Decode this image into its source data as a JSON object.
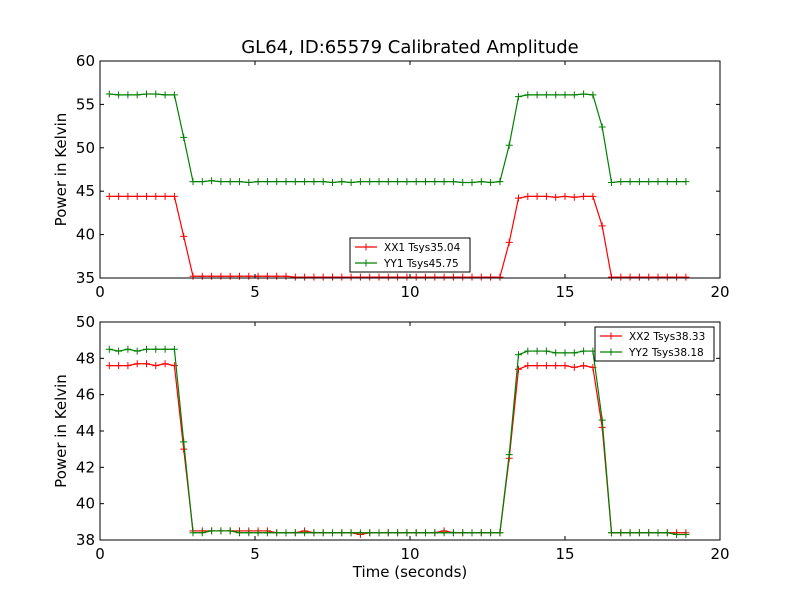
{
  "figure": {
    "title": "GL64, ID:65579 Calibrated Amplitude"
  },
  "chart_data": [
    {
      "type": "line",
      "title": "GL64, ID:65579 Calibrated Amplitude",
      "xlabel": "",
      "ylabel": "Power in Kelvin",
      "xlim": [
        0,
        20
      ],
      "ylim": [
        35,
        60
      ],
      "xticks": [
        0,
        5,
        10,
        15,
        20
      ],
      "yticks": [
        35,
        40,
        45,
        50,
        55,
        60
      ],
      "grid": false,
      "legend": "lower-center",
      "series": [
        {
          "name": "XX1 Tsys35.04",
          "color": "#ff0000",
          "marker": "+",
          "x": [
            0.3,
            0.6,
            0.9,
            1.2,
            1.5,
            1.8,
            2.1,
            2.4,
            2.7,
            3.0,
            3.3,
            3.6,
            3.9,
            4.2,
            4.5,
            4.8,
            5.1,
            5.4,
            5.7,
            6.0,
            6.3,
            6.6,
            6.9,
            7.2,
            7.5,
            7.8,
            8.1,
            8.4,
            8.7,
            9.0,
            9.3,
            9.6,
            9.9,
            10.2,
            10.5,
            10.8,
            11.1,
            11.4,
            11.7,
            12.0,
            12.3,
            12.6,
            12.9,
            13.2,
            13.5,
            13.8,
            14.1,
            14.4,
            14.7,
            15.0,
            15.3,
            15.6,
            15.9,
            16.2,
            16.5,
            16.8,
            17.1,
            17.4,
            17.7,
            18.0,
            18.3,
            18.6,
            18.9
          ],
          "y": [
            44.4,
            44.4,
            44.4,
            44.4,
            44.4,
            44.4,
            44.4,
            44.4,
            39.8,
            35.2,
            35.2,
            35.2,
            35.2,
            35.2,
            35.2,
            35.2,
            35.2,
            35.2,
            35.2,
            35.2,
            35.1,
            35.1,
            35.1,
            35.1,
            35.1,
            35.1,
            35.1,
            35.1,
            35.1,
            35.1,
            35.1,
            35.1,
            35.1,
            35.1,
            35.1,
            35.1,
            35.1,
            35.1,
            35.1,
            35.1,
            35.1,
            35.1,
            35.1,
            39.1,
            44.2,
            44.4,
            44.4,
            44.4,
            44.3,
            44.4,
            44.3,
            44.4,
            44.4,
            41.0,
            35.1,
            35.1,
            35.1,
            35.1,
            35.1,
            35.1,
            35.1,
            35.1,
            35.1
          ]
        },
        {
          "name": "YY1 Tsys45.75",
          "color": "#008000",
          "marker": "+",
          "x": [
            0.3,
            0.6,
            0.9,
            1.2,
            1.5,
            1.8,
            2.1,
            2.4,
            2.7,
            3.0,
            3.3,
            3.6,
            3.9,
            4.2,
            4.5,
            4.8,
            5.1,
            5.4,
            5.7,
            6.0,
            6.3,
            6.6,
            6.9,
            7.2,
            7.5,
            7.8,
            8.1,
            8.4,
            8.7,
            9.0,
            9.3,
            9.6,
            9.9,
            10.2,
            10.5,
            10.8,
            11.1,
            11.4,
            11.7,
            12.0,
            12.3,
            12.6,
            12.9,
            13.2,
            13.5,
            13.8,
            14.1,
            14.4,
            14.7,
            15.0,
            15.3,
            15.6,
            15.9,
            16.2,
            16.5,
            16.8,
            17.1,
            17.4,
            17.7,
            18.0,
            18.3,
            18.6,
            18.9
          ],
          "y": [
            56.2,
            56.1,
            56.1,
            56.1,
            56.2,
            56.2,
            56.1,
            56.1,
            51.2,
            46.1,
            46.1,
            46.2,
            46.1,
            46.1,
            46.1,
            46.0,
            46.1,
            46.1,
            46.1,
            46.1,
            46.1,
            46.1,
            46.1,
            46.1,
            46.0,
            46.1,
            46.0,
            46.1,
            46.1,
            46.1,
            46.1,
            46.1,
            46.1,
            46.1,
            46.1,
            46.1,
            46.1,
            46.1,
            46.0,
            46.0,
            46.1,
            46.0,
            46.1,
            50.3,
            55.9,
            56.1,
            56.1,
            56.1,
            56.1,
            56.1,
            56.1,
            56.2,
            56.1,
            52.4,
            46.0,
            46.1,
            46.1,
            46.1,
            46.1,
            46.1,
            46.1,
            46.1,
            46.1
          ]
        }
      ]
    },
    {
      "type": "line",
      "title": "",
      "xlabel": "Time (seconds)",
      "ylabel": "Power in Kelvin",
      "xlim": [
        0,
        20
      ],
      "ylim": [
        38,
        50
      ],
      "xticks": [
        0,
        5,
        10,
        15,
        20
      ],
      "yticks": [
        38,
        40,
        42,
        44,
        46,
        48,
        50
      ],
      "grid": false,
      "legend": "top-right",
      "series": [
        {
          "name": "XX2 Tsys38.33",
          "color": "#ff0000",
          "marker": "+",
          "x": [
            0.3,
            0.6,
            0.9,
            1.2,
            1.5,
            1.8,
            2.1,
            2.4,
            2.7,
            3.0,
            3.3,
            3.6,
            3.9,
            4.2,
            4.5,
            4.8,
            5.1,
            5.4,
            5.7,
            6.0,
            6.3,
            6.6,
            6.9,
            7.2,
            7.5,
            7.8,
            8.1,
            8.4,
            8.7,
            9.0,
            9.3,
            9.6,
            9.9,
            10.2,
            10.5,
            10.8,
            11.1,
            11.4,
            11.7,
            12.0,
            12.3,
            12.6,
            12.9,
            13.2,
            13.5,
            13.8,
            14.1,
            14.4,
            14.7,
            15.0,
            15.3,
            15.6,
            15.9,
            16.2,
            16.5,
            16.8,
            17.1,
            17.4,
            17.7,
            18.0,
            18.3,
            18.6,
            18.9
          ],
          "y": [
            47.6,
            47.6,
            47.6,
            47.7,
            47.7,
            47.6,
            47.7,
            47.6,
            43.0,
            38.5,
            38.5,
            38.5,
            38.5,
            38.5,
            38.5,
            38.5,
            38.5,
            38.5,
            38.4,
            38.4,
            38.4,
            38.5,
            38.4,
            38.4,
            38.4,
            38.4,
            38.4,
            38.3,
            38.4,
            38.4,
            38.4,
            38.4,
            38.4,
            38.4,
            38.4,
            38.4,
            38.5,
            38.4,
            38.4,
            38.4,
            38.4,
            38.4,
            38.4,
            42.5,
            47.4,
            47.6,
            47.6,
            47.6,
            47.6,
            47.6,
            47.5,
            47.6,
            47.5,
            44.2,
            38.4,
            38.4,
            38.4,
            38.4,
            38.4,
            38.4,
            38.4,
            38.4,
            38.4
          ]
        },
        {
          "name": "YY2 Tsys38.18",
          "color": "#008000",
          "marker": "+",
          "x": [
            0.3,
            0.6,
            0.9,
            1.2,
            1.5,
            1.8,
            2.1,
            2.4,
            2.7,
            3.0,
            3.3,
            3.6,
            3.9,
            4.2,
            4.5,
            4.8,
            5.1,
            5.4,
            5.7,
            6.0,
            6.3,
            6.6,
            6.9,
            7.2,
            7.5,
            7.8,
            8.1,
            8.4,
            8.7,
            9.0,
            9.3,
            9.6,
            9.9,
            10.2,
            10.5,
            10.8,
            11.1,
            11.4,
            11.7,
            12.0,
            12.3,
            12.6,
            12.9,
            13.2,
            13.5,
            13.8,
            14.1,
            14.4,
            14.7,
            15.0,
            15.3,
            15.6,
            15.9,
            16.2,
            16.5,
            16.8,
            17.1,
            17.4,
            17.7,
            18.0,
            18.3,
            18.6,
            18.9
          ],
          "y": [
            48.5,
            48.4,
            48.5,
            48.4,
            48.5,
            48.5,
            48.5,
            48.5,
            43.4,
            38.4,
            38.4,
            38.5,
            38.5,
            38.5,
            38.4,
            38.4,
            38.4,
            38.4,
            38.4,
            38.4,
            38.4,
            38.4,
            38.4,
            38.4,
            38.4,
            38.4,
            38.4,
            38.4,
            38.4,
            38.4,
            38.4,
            38.4,
            38.4,
            38.4,
            38.4,
            38.4,
            38.4,
            38.4,
            38.4,
            38.4,
            38.4,
            38.4,
            38.4,
            42.7,
            48.2,
            48.4,
            48.4,
            48.4,
            48.3,
            48.3,
            48.3,
            48.4,
            48.4,
            44.6,
            38.4,
            38.4,
            38.4,
            38.4,
            38.4,
            38.4,
            38.4,
            38.3,
            38.3
          ]
        }
      ]
    }
  ]
}
